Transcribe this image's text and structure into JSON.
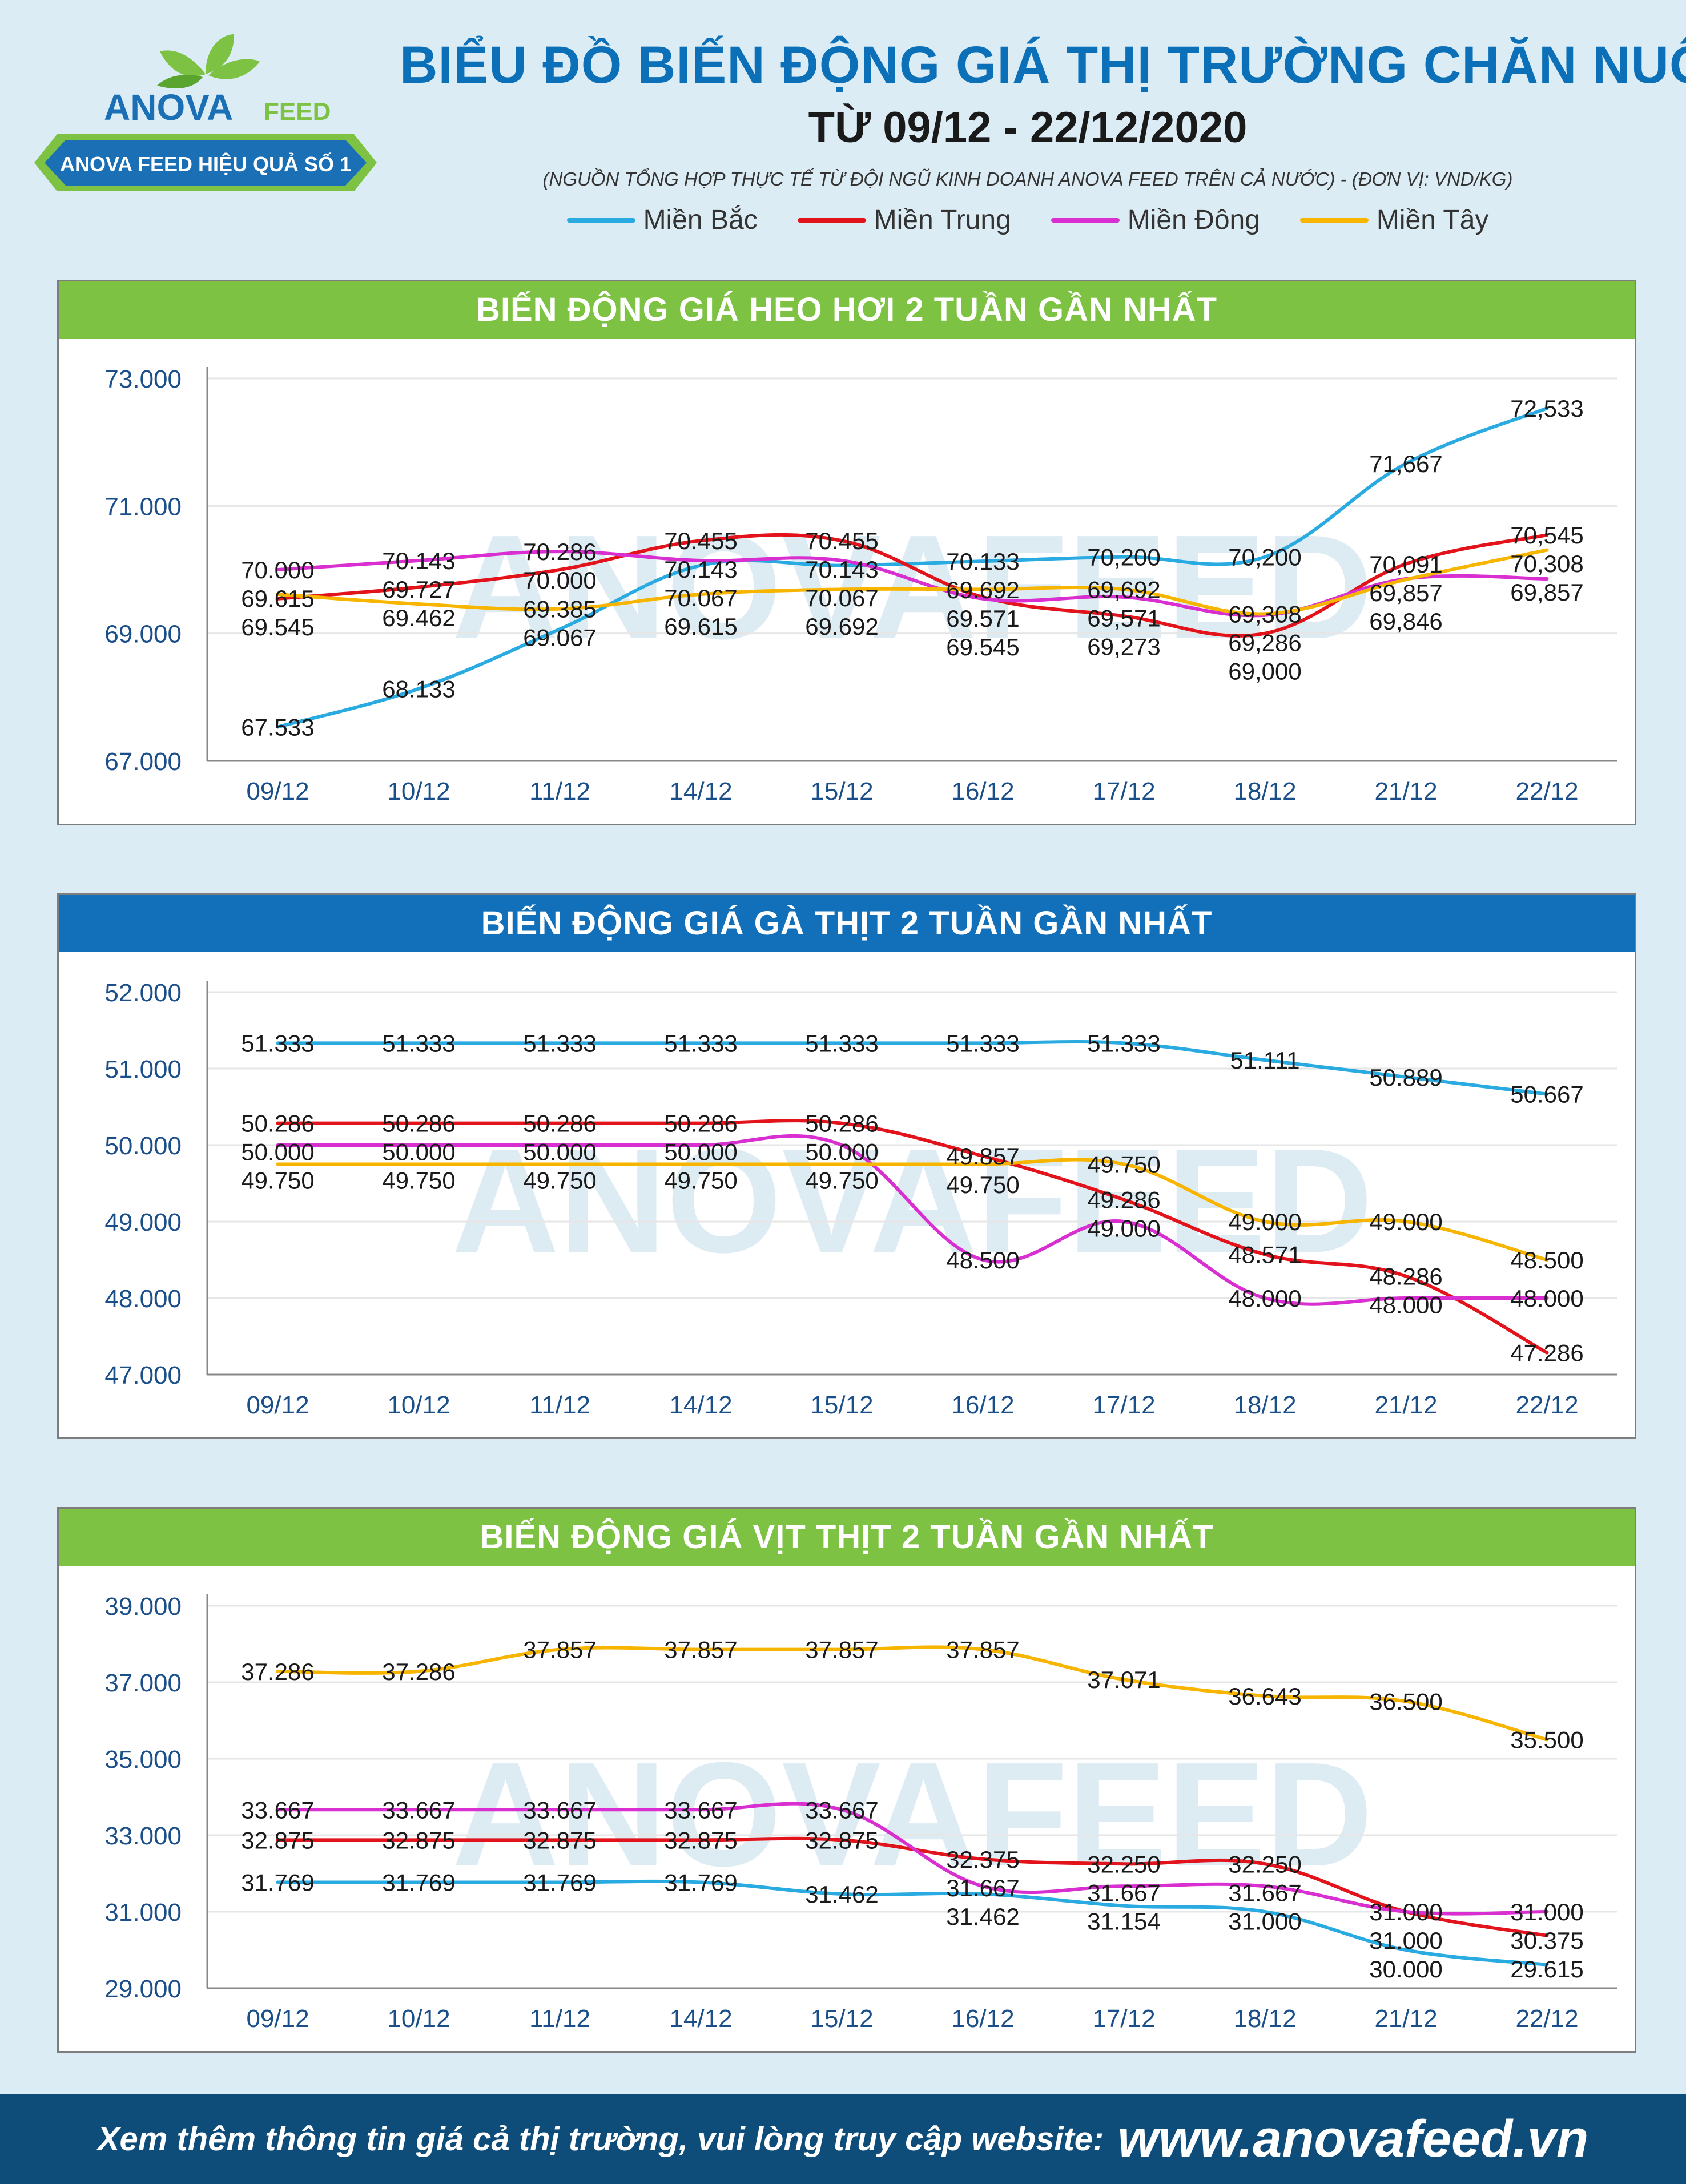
{
  "header": {
    "logo_text": "ANOVAFEED",
    "logo_slogan": "ANOVA FEED HIỆU QUẢ SỐ 1",
    "title": "BIỂU ĐỒ BIẾN ĐỘNG GIÁ THỊ TRƯỜNG CHĂN NUÔI",
    "subtitle": "TỪ 09/12 - 22/12/2020",
    "source_note": "(NGUỒN TỔNG HỢP THỰC TẾ TỪ ĐỘI NGŨ KINH DOANH ANOVA FEED TRÊN CẢ NƯỚC)   -   (ĐƠN VỊ: VND/KG)"
  },
  "legend": [
    {
      "name": "Miền Bắc",
      "color": "#29abe2"
    },
    {
      "name": "Miền Trung",
      "color": "#e3131b"
    },
    {
      "name": "Miền Đông",
      "color": "#d92fd1"
    },
    {
      "name": "Miền Tây",
      "color": "#f7b500"
    }
  ],
  "chart_data": [
    {
      "type": "line",
      "title": "BIẾN ĐỘNG GIÁ HEO HƠI 2 TUẦN GẦN NHẤT",
      "header_color": "#7dc242",
      "categories": [
        "09/12",
        "10/12",
        "11/12",
        "14/12",
        "15/12",
        "16/12",
        "17/12",
        "18/12",
        "21/12",
        "22/12"
      ],
      "y_ticks": [
        "67.000",
        "69.000",
        "71.000",
        "73.000"
      ],
      "ylim": [
        67000,
        73000
      ],
      "watermark": "ANOVAFEED",
      "series": [
        {
          "name": "Miền Bắc",
          "color": "#29abe2",
          "values": [
            67533,
            68133,
            69067,
            70067,
            70067,
            70133,
            70200,
            70200,
            71667,
            72533
          ],
          "labels": [
            "67.533",
            "68.133",
            "69.067",
            "70.067",
            "70.067",
            "70.133",
            "70,200",
            "70,200",
            "71,667",
            "72,533"
          ]
        },
        {
          "name": "Miền Trung",
          "color": "#e3131b",
          "values": [
            69545,
            69727,
            70000,
            70455,
            70455,
            69571,
            69273,
            69000,
            70091,
            70545
          ],
          "labels": [
            "69.545",
            "69.727",
            "70.000",
            "70.455",
            "70.455",
            "69.571",
            "69,273",
            "69,000",
            "70,091",
            "70,545"
          ]
        },
        {
          "name": "Miền Đông",
          "color": "#d92fd1",
          "values": [
            70000,
            70143,
            70286,
            70143,
            70143,
            69545,
            69571,
            69286,
            69857,
            69857
          ],
          "labels": [
            "70.000",
            "70.143",
            "70.286",
            "70.143",
            "70.143",
            "69.545",
            "69,571",
            "69,286",
            "69,857",
            "69,857"
          ]
        },
        {
          "name": "Miền Tây",
          "color": "#f7b500",
          "values": [
            69615,
            69462,
            69385,
            69615,
            69692,
            69692,
            69692,
            69308,
            69846,
            70308
          ],
          "labels": [
            "69.615",
            "69.462",
            "69.385",
            "69.615",
            "69.692",
            "69.692",
            "69,692",
            "69,308",
            "69,846",
            "70,308"
          ]
        }
      ]
    },
    {
      "type": "line",
      "title": "BIẾN ĐỘNG GIÁ GÀ THỊT 2 TUẦN GẦN NHẤT",
      "header_color": "#1170b9",
      "categories": [
        "09/12",
        "10/12",
        "11/12",
        "14/12",
        "15/12",
        "16/12",
        "17/12",
        "18/12",
        "21/12",
        "22/12"
      ],
      "y_ticks": [
        "47.000",
        "48.000",
        "49.000",
        "50.000",
        "51.000",
        "52.000"
      ],
      "ylim": [
        47000,
        52000
      ],
      "watermark": "ANOVAFEED",
      "series": [
        {
          "name": "Miền Bắc",
          "color": "#29abe2",
          "values": [
            51333,
            51333,
            51333,
            51333,
            51333,
            51333,
            51333,
            51111,
            50889,
            50667
          ],
          "labels": [
            "51.333",
            "51.333",
            "51.333",
            "51.333",
            "51.333",
            "51.333",
            "51.333",
            "51.111",
            "50.889",
            "50.667"
          ]
        },
        {
          "name": "Miền Trung",
          "color": "#e3131b",
          "values": [
            50286,
            50286,
            50286,
            50286,
            50286,
            49857,
            49286,
            48571,
            48286,
            47286
          ],
          "labels": [
            "50.286",
            "50.286",
            "50.286",
            "50.286",
            "50.286",
            "49.857",
            "49.286",
            "48.571",
            "48.286",
            "47.286"
          ]
        },
        {
          "name": "Miền Đông",
          "color": "#d92fd1",
          "values": [
            50000,
            50000,
            50000,
            50000,
            50000,
            48500,
            49000,
            48000,
            48000,
            48000
          ],
          "labels": [
            "50.000",
            "50.000",
            "50.000",
            "50.000",
            "50.000",
            "48.500",
            "49.000",
            "48.000",
            "48.000",
            "48.000"
          ]
        },
        {
          "name": "Miền Tây",
          "color": "#f7b500",
          "values": [
            49750,
            49750,
            49750,
            49750,
            49750,
            49750,
            49750,
            49000,
            49000,
            48500
          ],
          "labels": [
            "49.750",
            "49.750",
            "49.750",
            "49.750",
            "49.750",
            "49.750",
            "49.750",
            "49.000",
            "49.000",
            "48.500"
          ]
        }
      ]
    },
    {
      "type": "line",
      "title": "BIẾN ĐỘNG GIÁ VỊT THỊT 2 TUẦN GẦN NHẤT",
      "header_color": "#7dc242",
      "categories": [
        "09/12",
        "10/12",
        "11/12",
        "14/12",
        "15/12",
        "16/12",
        "17/12",
        "18/12",
        "21/12",
        "22/12"
      ],
      "y_ticks": [
        "29.000",
        "31.000",
        "33.000",
        "35.000",
        "37.000",
        "39.000"
      ],
      "ylim": [
        29000,
        39000
      ],
      "watermark": "ANOVAFEED",
      "series": [
        {
          "name": "Miền Bắc",
          "color": "#29abe2",
          "values": [
            31769,
            31769,
            31769,
            31769,
            31462,
            31462,
            31154,
            31000,
            30000,
            29615
          ],
          "labels": [
            "31.769",
            "31.769",
            "31.769",
            "31.769",
            "31.462",
            "31.462",
            "31.154",
            "31.000",
            "30.000",
            "29.615"
          ]
        },
        {
          "name": "Miền Trung",
          "color": "#e3131b",
          "values": [
            32875,
            32875,
            32875,
            32875,
            32875,
            32375,
            32250,
            32250,
            31000,
            30375
          ],
          "labels": [
            "32.875",
            "32.875",
            "32.875",
            "32.875",
            "32.875",
            "32.375",
            "32.250",
            "32.250",
            "31.000",
            "30.375"
          ]
        },
        {
          "name": "Miền Đông",
          "color": "#d92fd1",
          "values": [
            33667,
            33667,
            33667,
            33667,
            33667,
            31667,
            31667,
            31667,
            31000,
            31000
          ],
          "labels": [
            "33.667",
            "33.667",
            "33.667",
            "33.667",
            "33.667",
            "31.667",
            "31.667",
            "31.667",
            "31.000",
            "31.000"
          ]
        },
        {
          "name": "Miền Tây",
          "color": "#f7b500",
          "values": [
            37286,
            37286,
            37857,
            37857,
            37857,
            37857,
            37071,
            36643,
            36500,
            35500
          ],
          "labels": [
            "37.286",
            "37.286",
            "37.857",
            "37.857",
            "37.857",
            "37.857",
            "37.071",
            "36.643",
            "36.500",
            "35.500"
          ]
        }
      ]
    }
  ],
  "footer": {
    "text": "Xem thêm thông tin giá cả thị trường, vui lòng truy cập website:",
    "url": "www.anovafeed.vn"
  }
}
